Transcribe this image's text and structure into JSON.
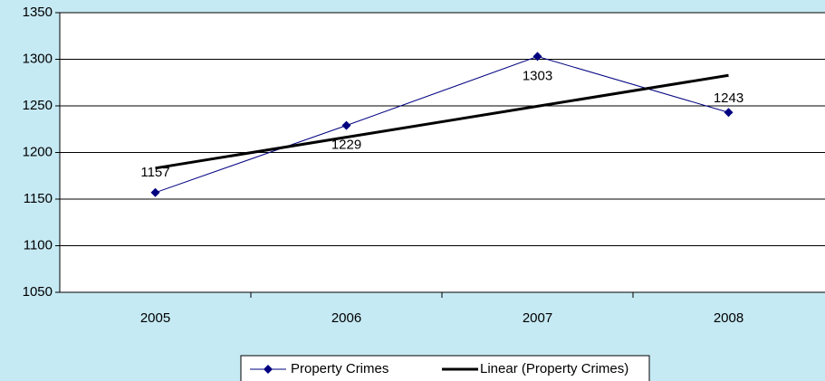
{
  "chart_data": {
    "type": "line",
    "categories": [
      "2005",
      "2006",
      "2007",
      "2008"
    ],
    "series": [
      {
        "name": "Property Crimes",
        "color": "#000080",
        "values": [
          1157,
          1229,
          1303,
          1243
        ]
      },
      {
        "name": "Linear (Property Crimes)",
        "color": "#000000",
        "values": [
          1183.2,
          1216.4,
          1249.6,
          1282.8
        ]
      }
    ],
    "ylim": [
      1050,
      1350
    ],
    "yticks": [
      1050,
      1100,
      1150,
      1200,
      1250,
      1300,
      1350
    ],
    "grid": true
  }
}
